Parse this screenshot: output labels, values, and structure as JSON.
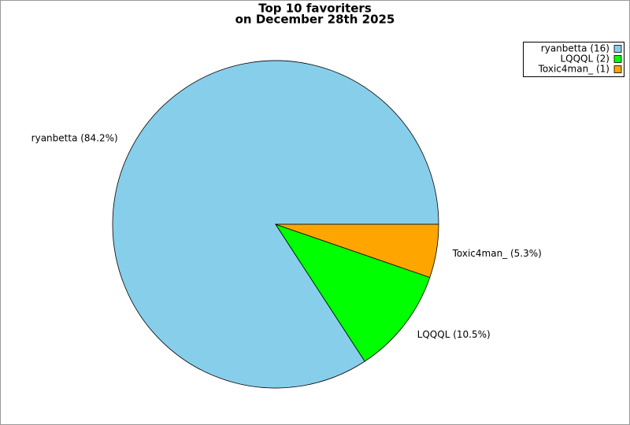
{
  "chart_data": {
    "type": "pie",
    "title": [
      "Top 10 favoriters",
      "on December 28th 2025"
    ],
    "categories": [
      "ryanbetta",
      "LQQQL",
      "Toxic4man_"
    ],
    "values": [
      16,
      2,
      1
    ],
    "colors": [
      "#87ceeb",
      "#00ff00",
      "#ffa500"
    ],
    "legend_labels": [
      "ryanbetta (16)",
      "LQQQL (2)",
      "Toxic4man_ (1)"
    ],
    "slice_labels": [
      "ryanbetta (84.2%)",
      "LQQQL (10.5%)",
      "Toxic4man_ (5.3%)"
    ],
    "legend": "upper right"
  }
}
